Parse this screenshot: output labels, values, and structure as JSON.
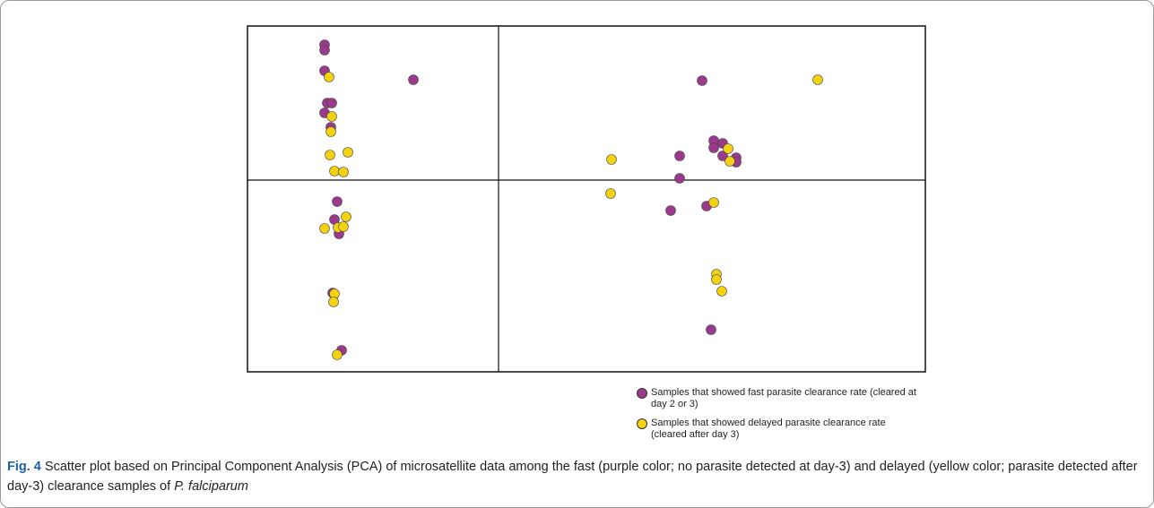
{
  "chart_data": {
    "type": "scatter",
    "xlim": [
      -28,
      47.6
    ],
    "ylim": [
      -21.4,
      17.2
    ],
    "series": [
      {
        "name": "Samples that showed fast parasite clearance rate (cleared at day 2 or 3)",
        "color": "#9b3a8c",
        "x": [
          -19.4,
          -19.4,
          -19.4,
          -9.5,
          -19.1,
          -18.6,
          -19.4,
          -18.7,
          -18,
          -18.3,
          -17.8,
          -18.5,
          -17.5,
          22.7,
          20.2,
          20.2,
          24,
          24,
          25,
          25,
          26.5,
          26.5,
          19.2,
          23.2,
          23.7
        ],
        "values": [
          15.1,
          14.5,
          12.2,
          11.2,
          8.6,
          8.6,
          7.5,
          5.9,
          -2.4,
          -4.4,
          -6,
          -12.6,
          -19,
          11.1,
          2.7,
          0.2,
          4.4,
          3.6,
          4.1,
          2.7,
          2.5,
          2,
          -3.4,
          -2.9,
          -16.7
        ]
      },
      {
        "name": "Samples that showed delayed parasite clearance rate (cleared after day 3)",
        "color": "#f5d20f",
        "x": [
          -18.9,
          -18.6,
          -18.7,
          -16.8,
          -18.8,
          -18.3,
          -17.3,
          -17,
          -19.4,
          -17.9,
          -17.3,
          -18.3,
          -18.4,
          -18,
          35.6,
          12.6,
          12.5,
          25.6,
          25.8,
          24,
          24.3,
          24.3,
          24.9
        ],
        "values": [
          11.5,
          7.1,
          5.4,
          3.1,
          2.8,
          1,
          0.9,
          -4.1,
          -5.4,
          -5.3,
          -5.2,
          -12.7,
          -13.6,
          -19.5,
          11.2,
          2.3,
          -1.5,
          3.5,
          2.1,
          -2.5,
          -10.5,
          -11.1,
          -12.4
        ]
      }
    ],
    "caption": {
      "label": "Fig. 4",
      "text": "Scatter plot based on Principal Component Analysis (PCA) of microsatellite data among the fast (purple color; no parasite detected at day-3) and delayed (yellow color; parasite detected after day-3) clearance samples of",
      "species": "P. falciparum"
    }
  }
}
